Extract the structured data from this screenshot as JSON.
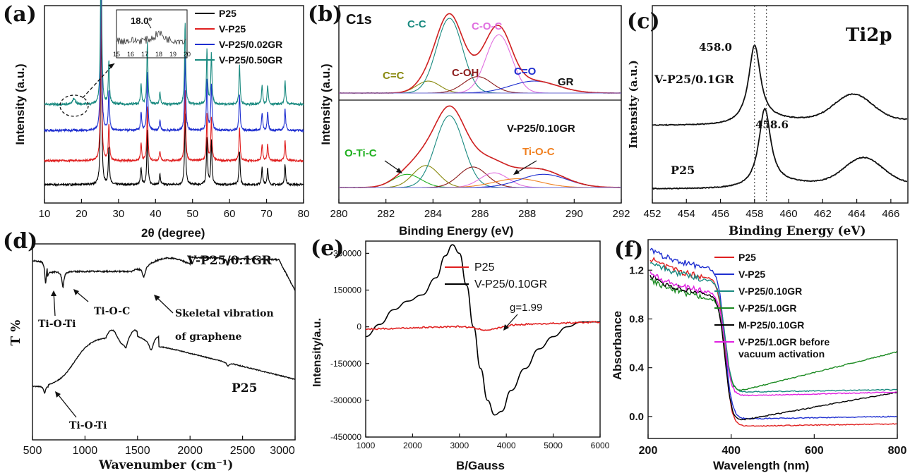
{
  "chart_data": [
    {
      "panel": "(a)",
      "type": "line",
      "xlabel": "2θ (degree)",
      "ylabel": "Intensity (a.u.)",
      "xlim": [
        10,
        80
      ],
      "xticks": [
        10,
        20,
        30,
        40,
        50,
        60,
        70,
        80
      ],
      "legend_position": "top-right",
      "series": [
        {
          "name": "P25",
          "color": "#000000",
          "offset": 0
        },
        {
          "name": "V-P25",
          "color": "#e02020",
          "offset": 1
        },
        {
          "name": "V-P25/0.02GR",
          "color": "#1f2fd0",
          "offset": 2
        },
        {
          "name": "V-P25/0.50GR",
          "color": "#1a8a80",
          "offset": 3
        }
      ],
      "peaks": [
        {
          "x": 25.3,
          "h": 1.0
        },
        {
          "x": 27.4,
          "h": 0.22
        },
        {
          "x": 36.1,
          "h": 0.1
        },
        {
          "x": 37.8,
          "h": 0.32
        },
        {
          "x": 41.2,
          "h": 0.06
        },
        {
          "x": 48.0,
          "h": 0.42
        },
        {
          "x": 53.9,
          "h": 0.28
        },
        {
          "x": 55.1,
          "h": 0.26
        },
        {
          "x": 62.7,
          "h": 0.2
        },
        {
          "x": 68.8,
          "h": 0.1
        },
        {
          "x": 70.3,
          "h": 0.1
        },
        {
          "x": 75.0,
          "h": 0.12
        }
      ],
      "inset": {
        "xlim": [
          15,
          20
        ],
        "xticks": [
          15,
          16,
          17,
          18,
          19,
          20
        ],
        "annotation": "18.0º"
      }
    },
    {
      "panel": "(b)",
      "type": "line",
      "title": "C1s",
      "xlabel": "Binding Energy (eV)",
      "ylabel": "Intensity (a.u.)",
      "xlim": [
        280,
        292
      ],
      "xticks": [
        280,
        282,
        284,
        286,
        288,
        290,
        292
      ],
      "top_sample": "GR",
      "bottom_sample": "V-P25/0.10GR",
      "top_components": [
        {
          "label": "C=C",
          "center": 283.8,
          "amp": 0.16,
          "width": 0.5,
          "color": "#8a8a10"
        },
        {
          "label": "C-C",
          "center": 284.7,
          "amp": 1.0,
          "width": 0.55,
          "color": "#1a8a80"
        },
        {
          "label": "C-OH",
          "center": 285.9,
          "amp": 0.22,
          "width": 0.6,
          "color": "#8b1a1a"
        },
        {
          "label": "C-O-C",
          "center": 286.8,
          "amp": 0.78,
          "width": 0.55,
          "color": "#e070e0"
        },
        {
          "label": "C=O",
          "center": 288.3,
          "amp": 0.16,
          "width": 1.0,
          "color": "#1f2fd0"
        }
      ],
      "bottom_components": [
        {
          "label": "O-Ti-C",
          "center": 282.9,
          "amp": 0.18,
          "width": 0.6,
          "color": "#20b020"
        },
        {
          "label": "",
          "center": 283.7,
          "amp": 0.3,
          "width": 0.55,
          "color": "#8a8a10"
        },
        {
          "label": "",
          "center": 284.7,
          "amp": 0.98,
          "width": 0.6,
          "color": "#1a8a80"
        },
        {
          "label": "",
          "center": 285.7,
          "amp": 0.28,
          "width": 0.6,
          "color": "#8b1a1a"
        },
        {
          "label": "",
          "center": 286.6,
          "amp": 0.2,
          "width": 0.6,
          "color": "#e070e0"
        },
        {
          "label": "Ti-O-C",
          "center": 287.6,
          "amp": 0.12,
          "width": 1.0,
          "color": "#f08020"
        },
        {
          "label": "",
          "center": 288.7,
          "amp": 0.18,
          "width": 1.0,
          "color": "#1f2fd0"
        }
      ],
      "envelope_color": "#d02020"
    },
    {
      "panel": "(c)",
      "type": "line",
      "title": "Ti2p",
      "xlabel": "Binding Energy (eV)",
      "ylabel": "Intensity (a.u.)",
      "xlim": [
        452,
        467
      ],
      "xticks": [
        452,
        454,
        456,
        458,
        460,
        462,
        464,
        466
      ],
      "series": [
        {
          "name": "V-P25/0.1GR",
          "peak": 458.0,
          "peak_label": "458.0",
          "satellite": 463.8
        },
        {
          "name": "P25",
          "peak": 458.6,
          "peak_label": "458.6",
          "satellite": 464.4
        }
      ],
      "reference_lines": [
        458.0,
        458.7
      ]
    },
    {
      "panel": "(d)",
      "type": "line",
      "xlabel": "Wavenumber (cm⁻¹)",
      "ylabel": "T %",
      "xlim": [
        500,
        3000
      ],
      "xticks": [
        500,
        1000,
        1500,
        2000,
        2500,
        3000
      ],
      "series": [
        {
          "name": "V-P25/0.1GR"
        },
        {
          "name": "P25"
        }
      ],
      "annotations": [
        "Ti-O-Ti",
        "Ti-O-C",
        "Skeletal vibration",
        "of graphene",
        "Ti-O-Ti"
      ]
    },
    {
      "panel": "(e)",
      "type": "line",
      "xlabel": "B/Gauss",
      "ylabel": "Intensity/a.u.",
      "xlim": [
        1000,
        6000
      ],
      "ylim": [
        -450000,
        350000
      ],
      "xticks": [
        1000,
        2000,
        3000,
        4000,
        5000,
        6000
      ],
      "yticks": [
        -450000,
        -300000,
        -150000,
        0,
        150000,
        300000
      ],
      "legend_position": "top-right",
      "series": [
        {
          "name": "P25",
          "color": "#e02020"
        },
        {
          "name": "V-P25/0.10GR",
          "color": "#000000",
          "x": [
            1000,
            1300,
            1600,
            1900,
            2200,
            2500,
            2700,
            2850,
            3000,
            3150,
            3300,
            3450,
            3600,
            3750,
            3900,
            4100,
            4400,
            4700,
            5000,
            5300,
            5600,
            6000
          ],
          "y": [
            -40000,
            10000,
            70000,
            105000,
            130000,
            200000,
            290000,
            335000,
            300000,
            170000,
            0,
            -170000,
            -300000,
            -360000,
            -345000,
            -260000,
            -170000,
            -90000,
            -40000,
            0,
            20000,
            20000
          ]
        }
      ],
      "annotation": "g=1.99"
    },
    {
      "panel": "(f)",
      "type": "line",
      "xlabel": "Wavelength (nm)",
      "ylabel": "Absorbance",
      "xlim": [
        200,
        800
      ],
      "ylim": [
        -0.18,
        1.45
      ],
      "xticks": [
        200,
        400,
        600,
        800
      ],
      "yticks": [
        0.0,
        0.4,
        0.8,
        1.2
      ],
      "legend_position": "top-right",
      "series": [
        {
          "name": "P25",
          "color": "#e02020",
          "plateau": 1.22,
          "tail_start": -0.08,
          "tail_end": -0.06
        },
        {
          "name": "V-P25",
          "color": "#1f2fd0",
          "plateau": 1.3,
          "tail_start": -0.02,
          "tail_end": 0.0
        },
        {
          "name": "V-P25/0.10GR",
          "color": "#1a8a80",
          "plateau": 1.2,
          "tail_start": 0.2,
          "tail_end": 0.22
        },
        {
          "name": "V-P25/1.0GR",
          "color": "#1a8a20",
          "plateau": 1.05,
          "tail_start": 0.2,
          "tail_end": 0.53
        },
        {
          "name": "M-P25/0.10GR",
          "color": "#000000",
          "plateau": 1.08,
          "tail_start": -0.04,
          "tail_end": 0.2
        },
        {
          "name": "V-P25/1.0GR before",
          "name_line2": "vacuum activation",
          "color": "#e020e0",
          "plateau": 1.1,
          "tail_start": 0.17,
          "tail_end": 0.2
        }
      ]
    }
  ]
}
